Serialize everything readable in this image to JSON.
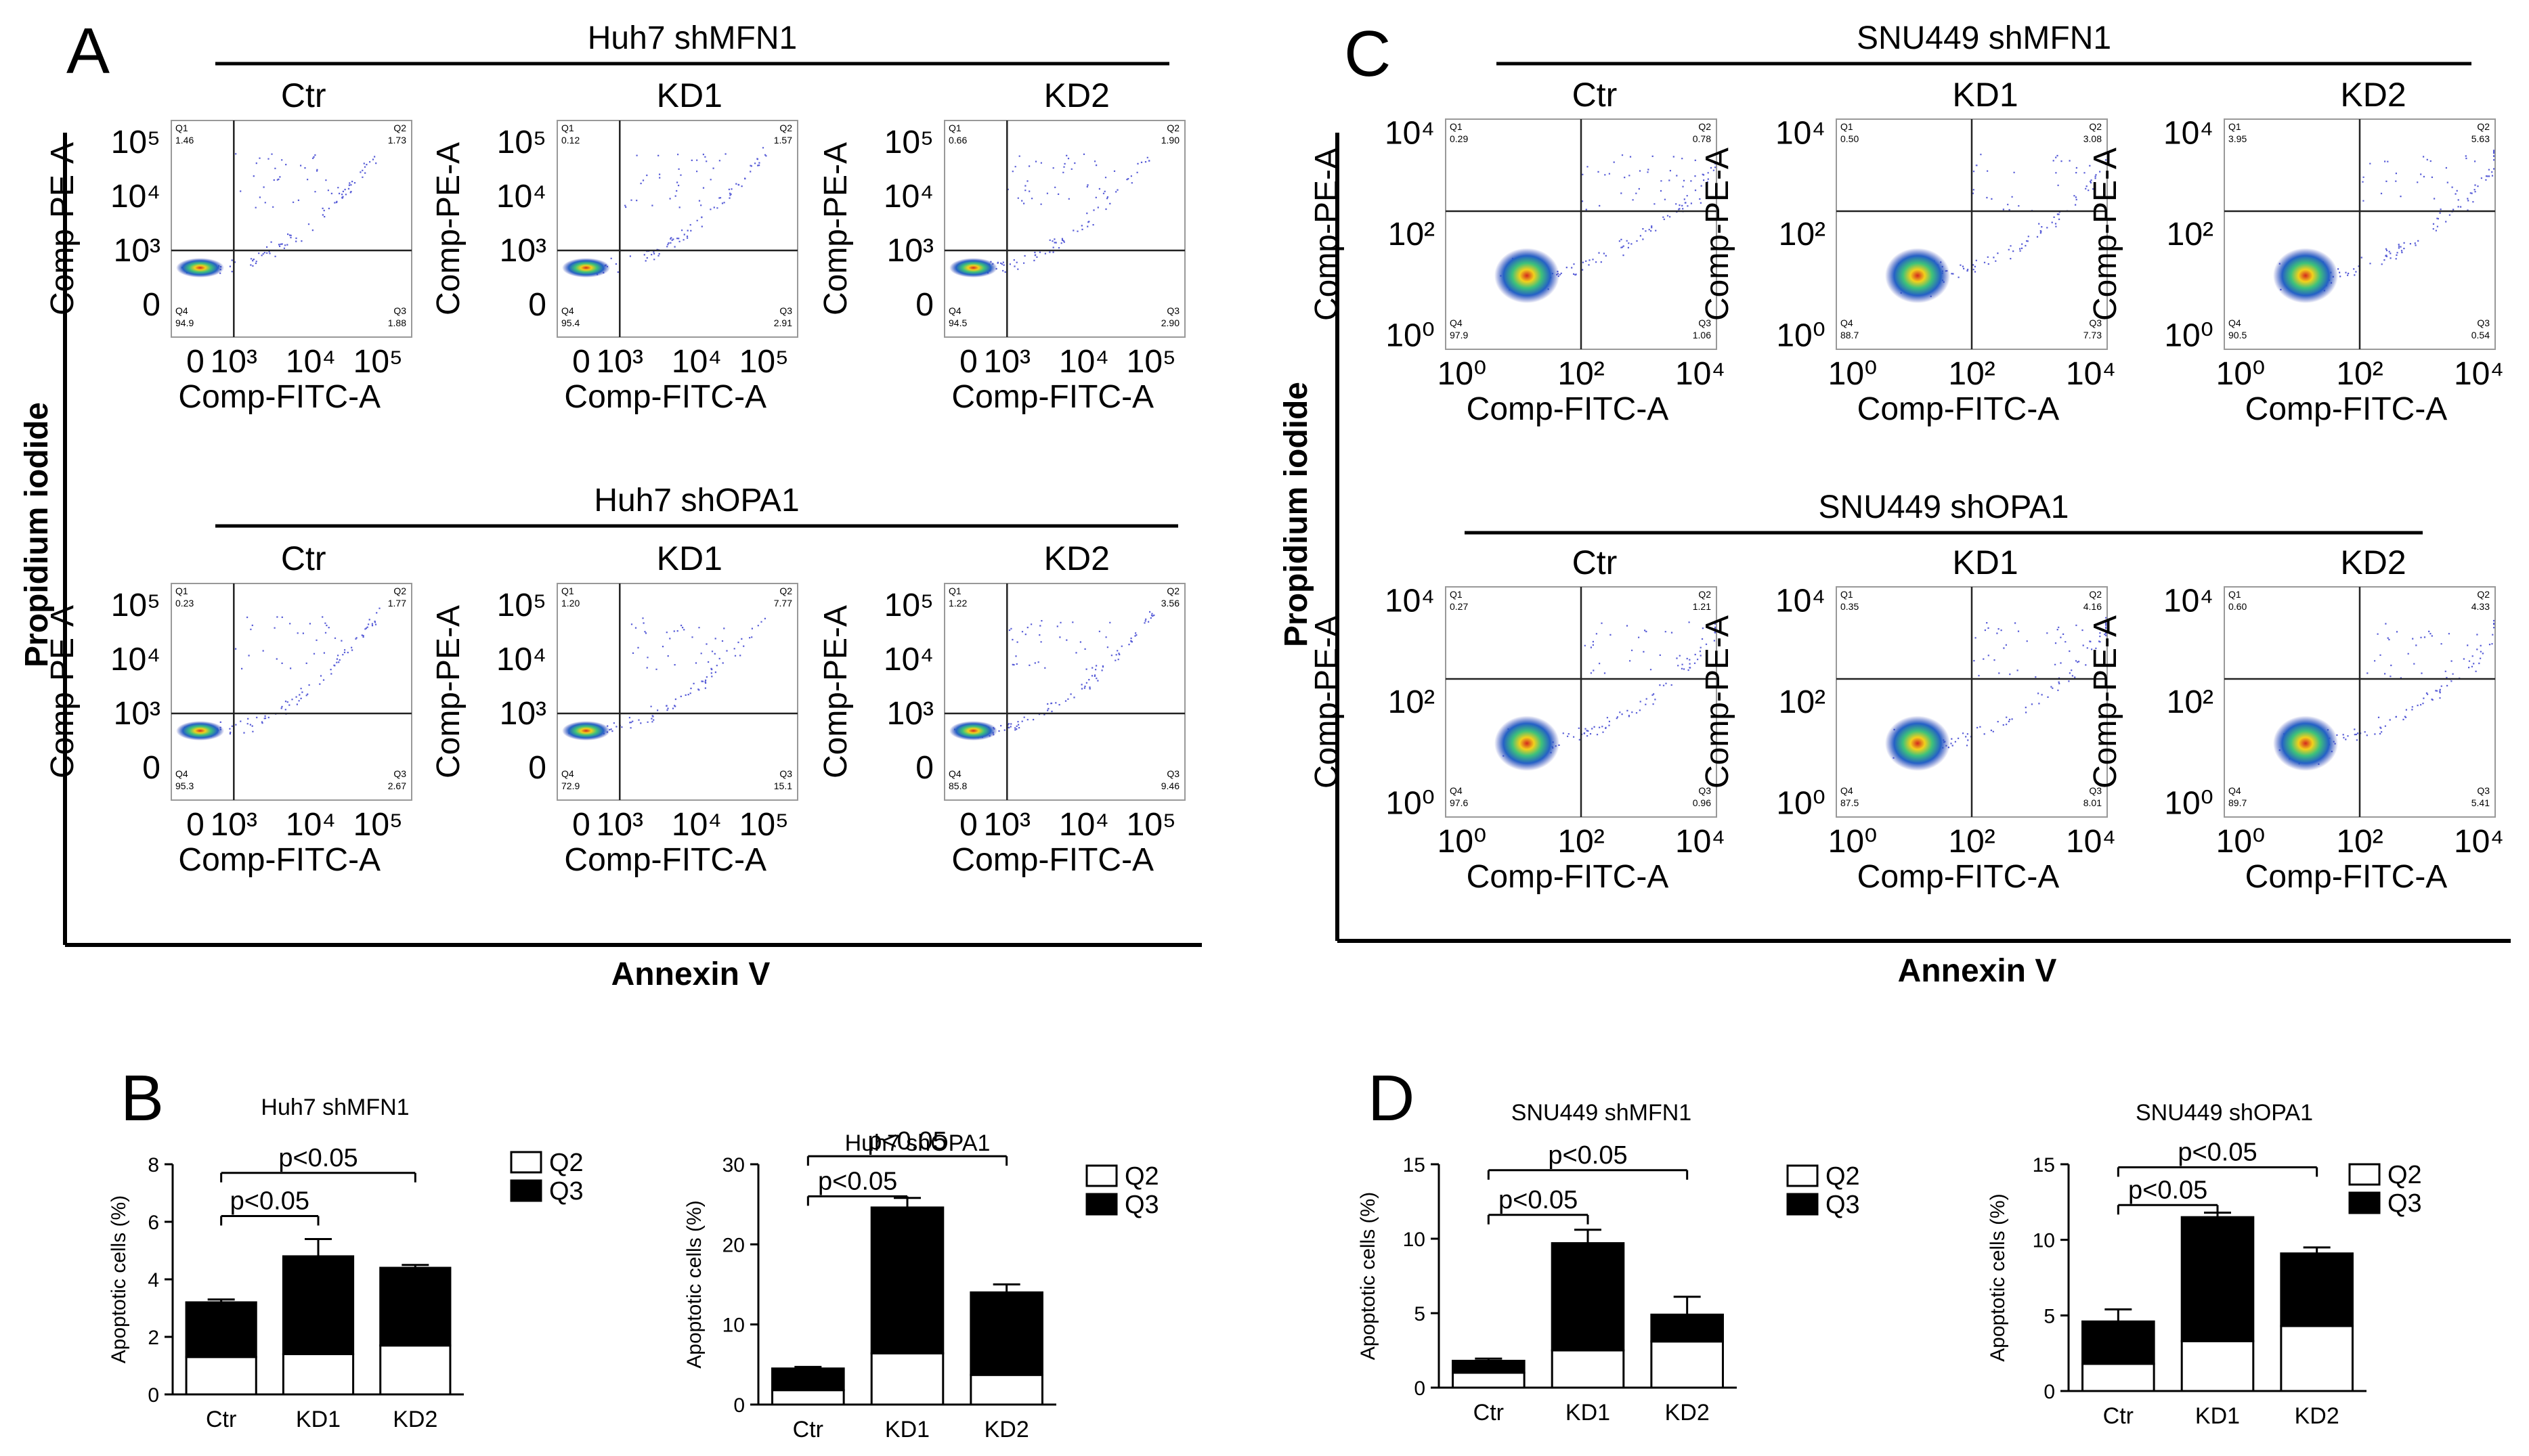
{
  "panels": {
    "A": "A",
    "B": "B",
    "C": "C",
    "D": "D"
  },
  "flow": {
    "A": {
      "rows": [
        {
          "group_title": "Huh7 shMFN1",
          "plots": [
            {
              "col": "Ctr",
              "q": [
                "1.46",
                "1.73",
                "1.88",
                "94.9"
              ]
            },
            {
              "col": "KD1",
              "q": [
                "0.12",
                "1.57",
                "2.91",
                "95.4"
              ]
            },
            {
              "col": "KD2",
              "q": [
                "0.66",
                "1.90",
                "2.90",
                "94.5"
              ]
            }
          ]
        },
        {
          "group_title": "Huh7 shOPA1",
          "plots": [
            {
              "col": "Ctr",
              "q": [
                "0.23",
                "1.77",
                "2.67",
                "95.3"
              ]
            },
            {
              "col": "KD1",
              "q": [
                "1.20",
                "7.77",
                "15.1",
                "72.9"
              ]
            },
            {
              "col": "KD2",
              "q": [
                "1.22",
                "3.56",
                "9.46",
                "85.8"
              ]
            }
          ]
        }
      ],
      "y_label": "Comp-PE-A",
      "x_label": "Comp-FITC-A",
      "y_ticks": [
        "10⁵",
        "10⁴",
        "10³",
        "0"
      ],
      "x_ticks": [
        "0",
        "10³",
        "10⁴",
        "10⁵"
      ],
      "side_label": "Propidium iodide",
      "bottom_label": "Annexin V"
    },
    "C": {
      "rows": [
        {
          "group_title": "SNU449 shMFN1",
          "plots": [
            {
              "col": "Ctr",
              "q": [
                "0.29",
                "0.78",
                "1.06",
                "97.9"
              ]
            },
            {
              "col": "KD1",
              "q": [
                "0.50",
                "3.08",
                "7.73",
                "88.7"
              ]
            },
            {
              "col": "KD2",
              "q": [
                "3.95",
                "5.63",
                "0.54",
                "90.5"
              ]
            }
          ]
        },
        {
          "group_title": "SNU449 shOPA1",
          "plots": [
            {
              "col": "Ctr",
              "q": [
                "0.27",
                "1.21",
                "0.96",
                "97.6"
              ]
            },
            {
              "col": "KD1",
              "q": [
                "0.35",
                "4.16",
                "8.01",
                "87.5"
              ]
            },
            {
              "col": "KD2",
              "q": [
                "0.60",
                "4.33",
                "5.41",
                "89.7"
              ]
            }
          ]
        }
      ],
      "y_label": "Comp-PE-A",
      "x_label": "Comp-FITC-A",
      "y_ticks": [
        "10⁴",
        "10²",
        "10⁰"
      ],
      "x_ticks": [
        "10⁰",
        "10²",
        "10⁴"
      ],
      "side_label": "Propidium iodide",
      "bottom_label": "Annexin V"
    }
  },
  "quadrant_names": [
    "Q1",
    "Q2",
    "Q3",
    "Q4"
  ],
  "chart_data": [
    {
      "type": "bar",
      "title": "Huh7 shMFN1",
      "categories": [
        "Ctr",
        "KD1",
        "KD2"
      ],
      "series": [
        {
          "name": "Q2",
          "values": [
            1.3,
            1.4,
            1.7
          ],
          "color": "#ffffff"
        },
        {
          "name": "Q3",
          "values": [
            1.9,
            3.4,
            2.7
          ],
          "color": "#000000"
        }
      ],
      "errors": [
        0.1,
        0.6,
        0.1
      ],
      "ylabel": "Apoptotic cells (%)",
      "ylim": [
        0,
        8
      ],
      "yticks": [
        0,
        2,
        4,
        6,
        8
      ],
      "annotations": [
        {
          "text": "p<0.05",
          "from": 0,
          "to": 1,
          "level": 6.2
        },
        {
          "text": "p<0.05",
          "from": 0,
          "to": 2,
          "level": 7.7
        }
      ]
    },
    {
      "type": "bar",
      "title": "Huh7 shOPA1",
      "categories": [
        "Ctr",
        "KD1",
        "KD2"
      ],
      "series": [
        {
          "name": "Q2",
          "values": [
            1.8,
            6.4,
            3.7
          ],
          "color": "#ffffff"
        },
        {
          "name": "Q3",
          "values": [
            2.7,
            18.2,
            10.3
          ],
          "color": "#000000"
        }
      ],
      "errors": [
        0.2,
        1.2,
        1.0
      ],
      "ylabel": "Apoptotic cells (%)",
      "ylim": [
        0,
        30
      ],
      "yticks": [
        0,
        10,
        20,
        30
      ],
      "annotations": [
        {
          "text": "p<0.05",
          "from": 0,
          "to": 1,
          "level": 26.0
        },
        {
          "text": "p<0.05",
          "from": 0,
          "to": 2,
          "level": 31.0
        }
      ]
    },
    {
      "type": "bar",
      "title": "SNU449 shMFN1",
      "categories": [
        "Ctr",
        "KD1",
        "KD2"
      ],
      "series": [
        {
          "name": "Q2",
          "values": [
            1.0,
            2.5,
            3.1
          ],
          "color": "#ffffff"
        },
        {
          "name": "Q3",
          "values": [
            0.8,
            7.2,
            1.8
          ],
          "color": "#000000"
        }
      ],
      "errors": [
        0.15,
        0.9,
        1.2
      ],
      "ylabel": "Apoptotic cells (%)",
      "ylim": [
        0,
        15
      ],
      "yticks": [
        0,
        5,
        10,
        15
      ],
      "annotations": [
        {
          "text": "p<0.05",
          "from": 0,
          "to": 1,
          "level": 11.6
        },
        {
          "text": "p<0.05",
          "from": 0,
          "to": 2,
          "level": 14.6
        }
      ]
    },
    {
      "type": "bar",
      "title": "SNU449 shOPA1",
      "categories": [
        "Ctr",
        "KD1",
        "KD2"
      ],
      "series": [
        {
          "name": "Q2",
          "values": [
            1.8,
            3.3,
            4.3
          ],
          "color": "#ffffff"
        },
        {
          "name": "Q3",
          "values": [
            2.8,
            8.2,
            4.8
          ],
          "color": "#000000"
        }
      ],
      "errors": [
        0.8,
        0.3,
        0.4
      ],
      "ylabel": "Apoptotic cells (%)",
      "ylim": [
        0,
        15
      ],
      "yticks": [
        0,
        5,
        10,
        15
      ],
      "annotations": [
        {
          "text": "p<0.05",
          "from": 0,
          "to": 1,
          "level": 12.3
        },
        {
          "text": "p<0.05",
          "from": 0,
          "to": 2,
          "level": 14.8
        }
      ]
    }
  ]
}
